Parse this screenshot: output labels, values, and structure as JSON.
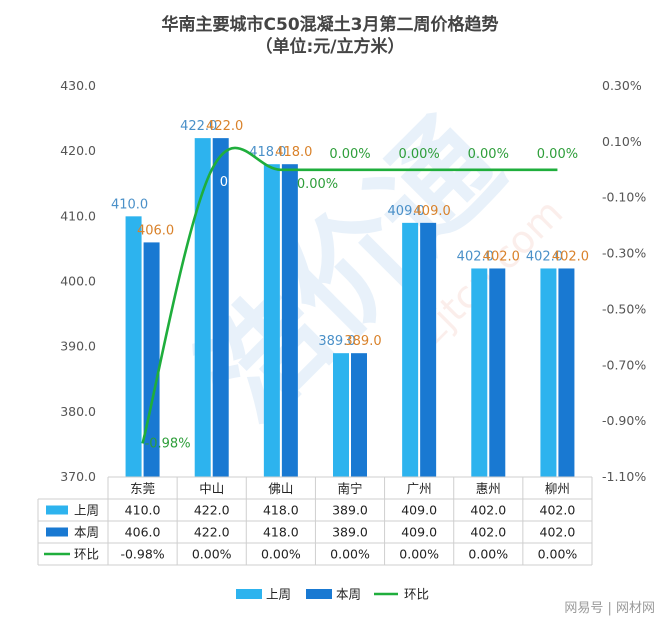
{
  "chart_data": {
    "type": "bar",
    "title": "华南主要城市C50混凝土3月第二周价格趋势",
    "subtitle": "（单位:元/立方米）",
    "categories": [
      "东莞",
      "中山",
      "佛山",
      "南宁",
      "广州",
      "惠州",
      "柳州"
    ],
    "series": [
      {
        "name": "上周",
        "type": "bar",
        "values": [
          410.0,
          422.0,
          418.0,
          389.0,
          409.0,
          402.0,
          402.0
        ],
        "labels": [
          "410.0",
          "422.0",
          "418.0",
          "389.0",
          "409.0",
          "402.0",
          "402.0"
        ],
        "color": "#2db3ee"
      },
      {
        "name": "本周",
        "type": "bar",
        "values": [
          406.0,
          422.0,
          418.0,
          389.0,
          409.0,
          402.0,
          402.0
        ],
        "labels": [
          "406.0",
          "422.0",
          "418.0",
          "389.0",
          "409.0",
          "402.0",
          "402.0"
        ],
        "color": "#1979d2"
      },
      {
        "name": "环比",
        "type": "line",
        "axis": "right",
        "values": [
          -0.98,
          0.0,
          0.0,
          0.0,
          0.0,
          0.0,
          0.0
        ],
        "labels": [
          "-0.98%",
          "0.00%",
          "0.00%",
          "0.00%",
          "0.00%",
          "0.00%",
          "0.00%"
        ],
        "color": "#1fae3c"
      }
    ],
    "y_left": {
      "min": 370,
      "max": 430,
      "step": 10,
      "ticks": [
        "370.0",
        "380.0",
        "390.0",
        "400.0",
        "410.0",
        "420.0",
        "430.0"
      ]
    },
    "y_right": {
      "min": -1.1,
      "max": 0.3,
      "step": 0.2,
      "ticks": [
        "-1.10%",
        "-0.90%",
        "-0.70%",
        "-0.50%",
        "-0.30%",
        "-0.10%",
        "0.10%",
        "0.30%"
      ]
    },
    "data_table": {
      "rows": [
        [
          "410.0",
          "422.0",
          "418.0",
          "389.0",
          "409.0",
          "402.0",
          "402.0"
        ],
        [
          "406.0",
          "422.0",
          "418.0",
          "389.0",
          "409.0",
          "402.0",
          "402.0"
        ],
        [
          "-0.98%",
          "0.00%",
          "0.00%",
          "0.00%",
          "0.00%",
          "0.00%",
          "0.00%"
        ]
      ]
    },
    "legend_position": "bottom",
    "grid": false
  },
  "watermark": {
    "mark_text": "浩价通",
    "url_text": "zjtcn.com",
    "footer": "网易号 | 网材网"
  }
}
